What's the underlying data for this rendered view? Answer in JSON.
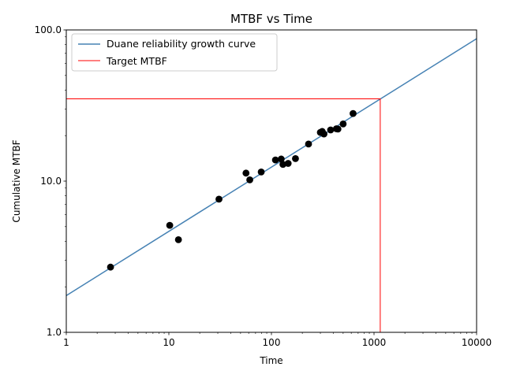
{
  "chart_data": {
    "type": "scatter",
    "title": "MTBF vs Time",
    "xlabel": "Time",
    "ylabel": "Cumulative MTBF",
    "x_scale": "log",
    "y_scale": "log",
    "xlim": [
      1,
      10000
    ],
    "ylim": [
      1,
      100
    ],
    "x_ticks": [
      1,
      10,
      100,
      1000,
      10000
    ],
    "x_tick_labels": [
      "1",
      "10",
      "100",
      "1000",
      "10000"
    ],
    "y_ticks": [
      1,
      10,
      100
    ],
    "y_tick_labels": [
      "1.0",
      "10.0",
      "100.0"
    ],
    "grid": false,
    "legend_position": "top-left",
    "colors": {
      "curve": "#4682b4",
      "target": "#ff0000",
      "points": "#000000"
    },
    "series": [
      {
        "name": "Duane reliability growth curve",
        "kind": "line",
        "x": [
          1,
          10000
        ],
        "y": [
          1.75,
          87.5
        ]
      },
      {
        "name": "Target MTBF",
        "kind": "line",
        "x": [
          1,
          1150,
          1150
        ],
        "y": [
          35,
          35,
          1
        ]
      },
      {
        "kind": "scatter",
        "x": [
          2.7,
          10.2,
          12.4,
          30.8,
          56.5,
          61.5,
          79.5,
          109.5,
          124.5,
          129.5,
          145.5,
          171.5,
          230.0,
          300.0,
          312.5,
          325.0,
          377.5,
          430.0,
          445.0,
          500.0,
          625.0
        ],
        "y": [
          2.7,
          5.1,
          4.1,
          7.6,
          11.3,
          10.2,
          11.5,
          13.8,
          14.0,
          12.9,
          13.1,
          14.1,
          17.6,
          21.0,
          21.3,
          20.5,
          21.8,
          22.2,
          22.1,
          23.9,
          28.0
        ]
      }
    ]
  }
}
